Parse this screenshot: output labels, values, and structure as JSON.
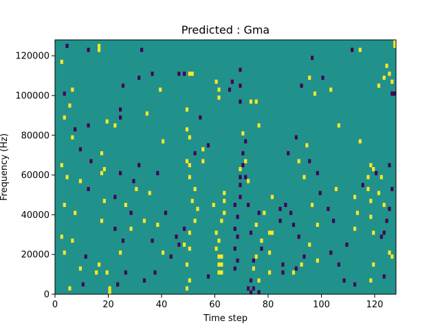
{
  "chart_data": {
    "type": "heatmap",
    "title": "Predicted : Gma",
    "xlabel": "Time step",
    "ylabel": "Frequency (Hz)",
    "xlim": [
      0,
      128
    ],
    "ylim": [
      0,
      128000
    ],
    "x_ticks": [
      0,
      20,
      40,
      60,
      80,
      100,
      120
    ],
    "x_tick_labels": [
      "0",
      "20",
      "40",
      "60",
      "80",
      "100",
      "120"
    ],
    "y_ticks": [
      0,
      20000,
      40000,
      60000,
      80000,
      100000,
      120000
    ],
    "y_tick_labels": [
      "0",
      "20000",
      "40000",
      "60000",
      "80000",
      "100000",
      "120000"
    ],
    "grid": false,
    "colormap": {
      "low": "#440154",
      "mid": "#21918c",
      "high": "#fde725"
    },
    "cells": [
      {
        "t": 20,
        "f": 0,
        "v": "high"
      },
      {
        "t": 20,
        "f": 2000,
        "v": "high"
      },
      {
        "t": 73,
        "f": 0,
        "v": "low"
      },
      {
        "t": 74,
        "f": 2000,
        "v": "low"
      },
      {
        "t": 76,
        "f": 0,
        "v": "low"
      },
      {
        "t": 112,
        "f": 4000,
        "v": "low"
      },
      {
        "t": 123,
        "f": 8000,
        "v": "low"
      },
      {
        "t": 61,
        "f": 10000,
        "v": "high"
      },
      {
        "t": 62,
        "f": 10000,
        "v": "high"
      },
      {
        "t": 61,
        "f": 14000,
        "v": "high"
      },
      {
        "t": 62,
        "f": 14000,
        "v": "high"
      },
      {
        "t": 61,
        "f": 18000,
        "v": "high"
      },
      {
        "t": 62,
        "f": 18000,
        "v": "high"
      },
      {
        "t": 60,
        "f": 22000,
        "v": "high"
      },
      {
        "t": 61,
        "f": 26000,
        "v": "high"
      },
      {
        "t": 60,
        "f": 30000,
        "v": "high"
      },
      {
        "t": 67,
        "f": 12000,
        "v": "low"
      },
      {
        "t": 68,
        "f": 16000,
        "v": "low"
      },
      {
        "t": 67,
        "f": 22000,
        "v": "low"
      },
      {
        "t": 68,
        "f": 28000,
        "v": "low"
      },
      {
        "t": 67,
        "f": 32000,
        "v": "low"
      },
      {
        "t": 68,
        "f": 38000,
        "v": "low"
      },
      {
        "t": 67,
        "f": 44000,
        "v": "low"
      },
      {
        "t": 69,
        "f": 48000,
        "v": "low"
      },
      {
        "t": 69,
        "f": 54000,
        "v": "low"
      },
      {
        "t": 69,
        "f": 58000,
        "v": "low"
      },
      {
        "t": 63,
        "f": 40000,
        "v": "high"
      },
      {
        "t": 63,
        "f": 46000,
        "v": "high"
      },
      {
        "t": 63,
        "f": 50000,
        "v": "high"
      },
      {
        "t": 59,
        "f": 44000,
        "v": "high"
      },
      {
        "t": 62,
        "f": 36000,
        "v": "high"
      },
      {
        "t": 85,
        "f": 10000,
        "v": "low"
      },
      {
        "t": 85,
        "f": 14000,
        "v": "low"
      },
      {
        "t": 84,
        "f": 36000,
        "v": "low"
      },
      {
        "t": 86,
        "f": 44000,
        "v": "low"
      },
      {
        "t": 84,
        "f": 42000,
        "v": "low"
      },
      {
        "t": 80,
        "f": 30000,
        "v": "high"
      },
      {
        "t": 80,
        "f": 20000,
        "v": "high"
      },
      {
        "t": 75,
        "f": 96000,
        "v": "high"
      },
      {
        "t": 73,
        "f": 96000,
        "v": "high"
      },
      {
        "t": 69,
        "f": 96000,
        "v": "low"
      },
      {
        "t": 65,
        "f": 102000,
        "v": "low"
      },
      {
        "t": 66,
        "f": 106000,
        "v": "low"
      },
      {
        "t": 69,
        "f": 104000,
        "v": "low"
      },
      {
        "t": 69,
        "f": 112000,
        "v": "low"
      },
      {
        "t": 61,
        "f": 98000,
        "v": "high"
      },
      {
        "t": 61,
        "f": 102000,
        "v": "high"
      },
      {
        "t": 60,
        "f": 106000,
        "v": "high"
      },
      {
        "t": 5,
        "f": 2000,
        "v": "high"
      },
      {
        "t": 3,
        "f": 20000,
        "v": "high"
      },
      {
        "t": 2,
        "f": 28000,
        "v": "high"
      },
      {
        "t": 3,
        "f": 44000,
        "v": "high"
      },
      {
        "t": 4,
        "f": 58000,
        "v": "high"
      },
      {
        "t": 15,
        "f": 10000,
        "v": "high"
      },
      {
        "t": 16,
        "f": 14000,
        "v": "high"
      },
      {
        "t": 17,
        "f": 36000,
        "v": "high"
      },
      {
        "t": 18,
        "f": 46000,
        "v": "high"
      },
      {
        "t": 17,
        "f": 60000,
        "v": "high"
      },
      {
        "t": 18,
        "f": 62000,
        "v": "high"
      },
      {
        "t": 17,
        "f": 70000,
        "v": "high"
      },
      {
        "t": 16,
        "f": 122000,
        "v": "high"
      },
      {
        "t": 16,
        "f": 124000,
        "v": "high"
      },
      {
        "t": 22,
        "f": 32000,
        "v": "low"
      },
      {
        "t": 25,
        "f": 26000,
        "v": "low"
      },
      {
        "t": 26,
        "f": 10000,
        "v": "low"
      },
      {
        "t": 28,
        "f": 40000,
        "v": "low"
      },
      {
        "t": 29,
        "f": 56000,
        "v": "low"
      },
      {
        "t": 31,
        "f": 64000,
        "v": "low"
      },
      {
        "t": 33,
        "f": 6000,
        "v": "low"
      },
      {
        "t": 37,
        "f": 10000,
        "v": "low"
      },
      {
        "t": 22,
        "f": 84000,
        "v": "high"
      },
      {
        "t": 19,
        "f": 86000,
        "v": "high"
      },
      {
        "t": 34,
        "f": 90000,
        "v": "high"
      },
      {
        "t": 24,
        "f": 92000,
        "v": "low"
      },
      {
        "t": 25,
        "f": 104000,
        "v": "low"
      },
      {
        "t": 31,
        "f": 108000,
        "v": "low"
      },
      {
        "t": 36,
        "f": 110000,
        "v": "low"
      },
      {
        "t": 32,
        "f": 122000,
        "v": "low"
      },
      {
        "t": 24,
        "f": 88000,
        "v": "low"
      },
      {
        "t": 49,
        "f": 2000,
        "v": "high"
      },
      {
        "t": 50,
        "f": 6000,
        "v": "high"
      },
      {
        "t": 49,
        "f": 14000,
        "v": "high"
      },
      {
        "t": 50,
        "f": 22000,
        "v": "high"
      },
      {
        "t": 48,
        "f": 24000,
        "v": "high"
      },
      {
        "t": 50,
        "f": 30000,
        "v": "high"
      },
      {
        "t": 52,
        "f": 36000,
        "v": "high"
      },
      {
        "t": 53,
        "f": 42000,
        "v": "high"
      },
      {
        "t": 51,
        "f": 46000,
        "v": "high"
      },
      {
        "t": 52,
        "f": 52000,
        "v": "high"
      },
      {
        "t": 50,
        "f": 58000,
        "v": "high"
      },
      {
        "t": 50,
        "f": 64000,
        "v": "high"
      },
      {
        "t": 49,
        "f": 66000,
        "v": "high"
      },
      {
        "t": 50,
        "f": 78000,
        "v": "high"
      },
      {
        "t": 49,
        "f": 82000,
        "v": "high"
      },
      {
        "t": 49,
        "f": 92000,
        "v": "high"
      },
      {
        "t": 51,
        "f": 110000,
        "v": "high"
      },
      {
        "t": 50,
        "f": 110000,
        "v": "high"
      },
      {
        "t": 55,
        "f": 72000,
        "v": "high"
      },
      {
        "t": 55,
        "f": 66000,
        "v": "high"
      },
      {
        "t": 45,
        "f": 28000,
        "v": "low"
      },
      {
        "t": 46,
        "f": 24000,
        "v": "low"
      },
      {
        "t": 48,
        "f": 32000,
        "v": "low"
      },
      {
        "t": 52,
        "f": 70000,
        "v": "low"
      },
      {
        "t": 54,
        "f": 88000,
        "v": "low"
      },
      {
        "t": 57,
        "f": 8000,
        "v": "low"
      },
      {
        "t": 57,
        "f": 74000,
        "v": "low"
      },
      {
        "t": 46,
        "f": 110000,
        "v": "low"
      },
      {
        "t": 48,
        "f": 110000,
        "v": "low"
      },
      {
        "t": 72,
        "f": 2000,
        "v": "low"
      },
      {
        "t": 73,
        "f": 6000,
        "v": "low"
      },
      {
        "t": 76,
        "f": 6000,
        "v": "low"
      },
      {
        "t": 74,
        "f": 16000,
        "v": "low"
      },
      {
        "t": 77,
        "f": 22000,
        "v": "low"
      },
      {
        "t": 73,
        "f": 30000,
        "v": "low"
      },
      {
        "t": 76,
        "f": 40000,
        "v": "low"
      },
      {
        "t": 72,
        "f": 44000,
        "v": "low"
      },
      {
        "t": 71,
        "f": 58000,
        "v": "low"
      },
      {
        "t": 70,
        "f": 64000,
        "v": "low"
      },
      {
        "t": 70,
        "f": 70000,
        "v": "low"
      },
      {
        "t": 71,
        "f": 76000,
        "v": "low"
      },
      {
        "t": 76,
        "f": 6000,
        "v": "high"
      },
      {
        "t": 74,
        "f": 12000,
        "v": "high"
      },
      {
        "t": 75,
        "f": 18000,
        "v": "high"
      },
      {
        "t": 77,
        "f": 26000,
        "v": "high"
      },
      {
        "t": 75,
        "f": 34000,
        "v": "high"
      },
      {
        "t": 78,
        "f": 40000,
        "v": "high"
      },
      {
        "t": 81,
        "f": 48000,
        "v": "high"
      },
      {
        "t": 72,
        "f": 56000,
        "v": "high"
      },
      {
        "t": 69,
        "f": 62000,
        "v": "high"
      },
      {
        "t": 71,
        "f": 66000,
        "v": "high"
      },
      {
        "t": 70,
        "f": 80000,
        "v": "high"
      },
      {
        "t": 76,
        "f": 84000,
        "v": "high"
      },
      {
        "t": 80,
        "f": 10000,
        "v": "high"
      },
      {
        "t": 81,
        "f": 30000,
        "v": "high"
      },
      {
        "t": 88,
        "f": 40000,
        "v": "low"
      },
      {
        "t": 89,
        "f": 34000,
        "v": "low"
      },
      {
        "t": 91,
        "f": 28000,
        "v": "low"
      },
      {
        "t": 93,
        "f": 18000,
        "v": "low"
      },
      {
        "t": 90,
        "f": 12000,
        "v": "low"
      },
      {
        "t": 87,
        "f": 70000,
        "v": "low"
      },
      {
        "t": 90,
        "f": 78000,
        "v": "low"
      },
      {
        "t": 95,
        "f": 66000,
        "v": "low"
      },
      {
        "t": 98,
        "f": 60000,
        "v": "low"
      },
      {
        "t": 99,
        "f": 50000,
        "v": "low"
      },
      {
        "t": 102,
        "f": 42000,
        "v": "low"
      },
      {
        "t": 104,
        "f": 36000,
        "v": "low"
      },
      {
        "t": 103,
        "f": 20000,
        "v": "low"
      },
      {
        "t": 106,
        "f": 14000,
        "v": "low"
      },
      {
        "t": 108,
        "f": 6000,
        "v": "low"
      },
      {
        "t": 92,
        "f": 104000,
        "v": "low"
      },
      {
        "t": 100,
        "f": 108000,
        "v": "low"
      },
      {
        "t": 96,
        "f": 118000,
        "v": "low"
      },
      {
        "t": 111,
        "f": 122000,
        "v": "low"
      },
      {
        "t": 89,
        "f": 10000,
        "v": "high"
      },
      {
        "t": 92,
        "f": 14000,
        "v": "high"
      },
      {
        "t": 95,
        "f": 24000,
        "v": "high"
      },
      {
        "t": 98,
        "f": 34000,
        "v": "high"
      },
      {
        "t": 96,
        "f": 44000,
        "v": "high"
      },
      {
        "t": 93,
        "f": 58000,
        "v": "high"
      },
      {
        "t": 91,
        "f": 66000,
        "v": "high"
      },
      {
        "t": 94,
        "f": 74000,
        "v": "high"
      },
      {
        "t": 105,
        "f": 52000,
        "v": "high"
      },
      {
        "t": 106,
        "f": 84000,
        "v": "high"
      },
      {
        "t": 114,
        "f": 76000,
        "v": "high"
      },
      {
        "t": 97,
        "f": 100000,
        "v": "high"
      },
      {
        "t": 95,
        "f": 108000,
        "v": "high"
      },
      {
        "t": 103,
        "f": 102000,
        "v": "high"
      },
      {
        "t": 114,
        "f": 122000,
        "v": "high"
      },
      {
        "t": 98,
        "f": 16000,
        "v": "high"
      },
      {
        "t": 109,
        "f": 24000,
        "v": "low"
      },
      {
        "t": 112,
        "f": 32000,
        "v": "high"
      },
      {
        "t": 113,
        "f": 40000,
        "v": "high"
      },
      {
        "t": 112,
        "f": 48000,
        "v": "high"
      },
      {
        "t": 117,
        "f": 52000,
        "v": "high"
      },
      {
        "t": 118,
        "f": 46000,
        "v": "high"
      },
      {
        "t": 118,
        "f": 38000,
        "v": "high"
      },
      {
        "t": 119,
        "f": 30000,
        "v": "high"
      },
      {
        "t": 117,
        "f": 58000,
        "v": "high"
      },
      {
        "t": 119,
        "f": 62000,
        "v": "high"
      },
      {
        "t": 118,
        "f": 64000,
        "v": "high"
      },
      {
        "t": 122,
        "f": 58000,
        "v": "high"
      },
      {
        "t": 123,
        "f": 44000,
        "v": "high"
      },
      {
        "t": 121,
        "f": 50000,
        "v": "high"
      },
      {
        "t": 125,
        "f": 20000,
        "v": "high"
      },
      {
        "t": 126,
        "f": 18000,
        "v": "high"
      },
      {
        "t": 119,
        "f": 14000,
        "v": "high"
      },
      {
        "t": 118,
        "f": 6000,
        "v": "high"
      },
      {
        "t": 122,
        "f": 28000,
        "v": "low"
      },
      {
        "t": 123,
        "f": 30000,
        "v": "low"
      },
      {
        "t": 124,
        "f": 36000,
        "v": "low"
      },
      {
        "t": 125,
        "f": 42000,
        "v": "low"
      },
      {
        "t": 126,
        "f": 52000,
        "v": "low"
      },
      {
        "t": 125,
        "f": 64000,
        "v": "low"
      },
      {
        "t": 120,
        "f": 60000,
        "v": "low"
      },
      {
        "t": 115,
        "f": 54000,
        "v": "low"
      },
      {
        "t": 126,
        "f": 100000,
        "v": "low"
      },
      {
        "t": 127,
        "f": 100000,
        "v": "low"
      },
      {
        "t": 126,
        "f": 106000,
        "v": "high"
      },
      {
        "t": 125,
        "f": 110000,
        "v": "high"
      },
      {
        "t": 124,
        "f": 114000,
        "v": "high"
      },
      {
        "t": 127,
        "f": 126000,
        "v": "high"
      },
      {
        "t": 127,
        "f": 124000,
        "v": "high"
      },
      {
        "t": 121,
        "f": 104000,
        "v": "high"
      },
      {
        "t": 123,
        "f": 108000,
        "v": "high"
      },
      {
        "t": 10,
        "f": 4000,
        "v": "low"
      },
      {
        "t": 11,
        "f": 18000,
        "v": "low"
      },
      {
        "t": 12,
        "f": 52000,
        "v": "low"
      },
      {
        "t": 13,
        "f": 66000,
        "v": "low"
      },
      {
        "t": 9,
        "f": 72000,
        "v": "low"
      },
      {
        "t": 7,
        "f": 82000,
        "v": "low"
      },
      {
        "t": 12,
        "f": 84000,
        "v": "low"
      },
      {
        "t": 3,
        "f": 100000,
        "v": "low"
      },
      {
        "t": 12,
        "f": 122000,
        "v": "low"
      },
      {
        "t": 4,
        "f": 124000,
        "v": "low"
      },
      {
        "t": 6,
        "f": 102000,
        "v": "high"
      },
      {
        "t": 5,
        "f": 94000,
        "v": "high"
      },
      {
        "t": 3,
        "f": 88000,
        "v": "high"
      },
      {
        "t": 6,
        "f": 78000,
        "v": "high"
      },
      {
        "t": 2,
        "f": 64000,
        "v": "high"
      },
      {
        "t": 9,
        "f": 56000,
        "v": "high"
      },
      {
        "t": 7,
        "f": 40000,
        "v": "high"
      },
      {
        "t": 6,
        "f": 26000,
        "v": "high"
      },
      {
        "t": 9,
        "f": 12000,
        "v": "high"
      },
      {
        "t": 2,
        "f": 116000,
        "v": "high"
      },
      {
        "t": 40,
        "f": 20000,
        "v": "high"
      },
      {
        "t": 38,
        "f": 34000,
        "v": "high"
      },
      {
        "t": 33,
        "f": 36000,
        "v": "high"
      },
      {
        "t": 35,
        "f": 50000,
        "v": "high"
      },
      {
        "t": 40,
        "f": 76000,
        "v": "high"
      },
      {
        "t": 39,
        "f": 102000,
        "v": "high"
      },
      {
        "t": 38,
        "f": 60000,
        "v": "low"
      },
      {
        "t": 41,
        "f": 40000,
        "v": "low"
      },
      {
        "t": 43,
        "f": 18000,
        "v": "low"
      },
      {
        "t": 36,
        "f": 26000,
        "v": "low"
      },
      {
        "t": 24,
        "f": 60000,
        "v": "low"
      },
      {
        "t": 22,
        "f": 48000,
        "v": "low"
      },
      {
        "t": 26,
        "f": 44000,
        "v": "high"
      },
      {
        "t": 30,
        "f": 52000,
        "v": "high"
      },
      {
        "t": 28,
        "f": 32000,
        "v": "high"
      },
      {
        "t": 24,
        "f": 20000,
        "v": "high"
      },
      {
        "t": 19,
        "f": 10000,
        "v": "high"
      },
      {
        "t": 23,
        "f": 4000,
        "v": "low"
      }
    ]
  }
}
